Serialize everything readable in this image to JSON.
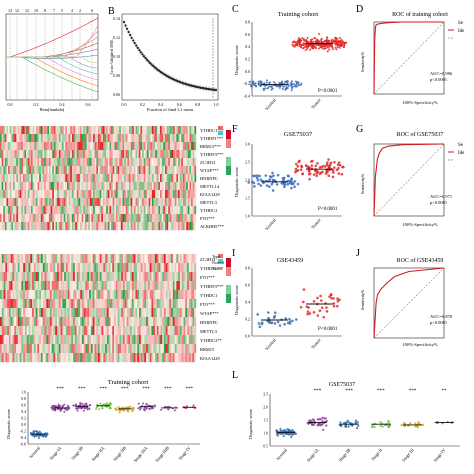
{
  "panels": {
    "A": {
      "letter": "",
      "ticks_top": [
        "12",
        "12",
        "12",
        "10",
        "8",
        "7",
        "5",
        "4",
        "2",
        "0"
      ],
      "xlabel": "Beta(lambda)",
      "xticks": [
        "0.0",
        "0.2",
        "0.4",
        "0.6"
      ]
    },
    "B": {
      "letter": "B",
      "ylabel": "Cross-Validated MSE",
      "xlabel": "Fraction of final L1 norm",
      "yticks": [
        "0.06",
        "0.08",
        "0.10",
        "0.12",
        "0.14"
      ],
      "xticks": [
        "0.0",
        "0.2",
        "0.4",
        "0.6",
        "0.8",
        "1.0"
      ]
    },
    "C": {
      "letter": "C",
      "title": "Training cohort",
      "ylabel": "Diagnostic score",
      "p_text": "P<0.0001",
      "yticks": [
        "0.8",
        "0.6",
        "0.4",
        "0.2",
        "0.0",
        "-0.2",
        "-0.4"
      ]
    },
    "D": {
      "letter": "D",
      "title": "ROC of training cohort",
      "legend": [
        "Se",
        "Ide"
      ],
      "auc": "AUC=0.986",
      "p": "p<0.0001",
      "xlabel": "100%-Specificity%",
      "ylabel": "Sensitivity%"
    },
    "E_labels": [
      "YTHDC1***",
      "YTHDF1***",
      "RBM15***",
      "YTHDF3***",
      "ZC3H13",
      "WTAP***",
      "HNRNPC",
      "METTL14",
      "KIAA1429",
      "METTL3",
      "YTHDC2",
      "FTO***",
      "ALKBH5***"
    ],
    "F": {
      "letter": "F",
      "title": "GSE75037",
      "ylabel": "Diagnostic score",
      "p_text": "P<0.0001",
      "yticks": [
        "3.0",
        "2.5",
        "2.0",
        "1.5",
        "1.0"
      ]
    },
    "G": {
      "letter": "G",
      "title": "ROC of GSE75037",
      "legend": [
        "Se",
        "Ide"
      ],
      "auc": "AUC=0.971",
      "p": "p<0.0001",
      "xlabel": "100%-Specificity%",
      "ylabel": "Sensitivity%"
    },
    "H_labels": [
      "ZC3H13",
      "YTHDF1***",
      "FTO***",
      "YTHDF3***",
      "YTHDC1",
      "FTO***",
      "WTAP***",
      "HNRNPC",
      "METTL3",
      "YTHDC2**",
      "RBM15",
      "KIAA1429"
    ],
    "H_legend": [
      "Type",
      "Normal",
      "Tumor"
    ],
    "I": {
      "letter": "I",
      "title": "GSE43459",
      "ylabel": "Diagnostic score",
      "p_text": "P<0.0001",
      "yticks": [
        "0.8",
        "0.6",
        "0.4",
        "0.2",
        "0.0"
      ]
    },
    "J": {
      "letter": "J",
      "title": "ROC of GSE43459",
      "auc": "AUC=0.878",
      "p": "p<0.0001",
      "xlabel": "100%-Specificity%",
      "ylabel": "Sensitivity%"
    },
    "K": {
      "letter": "",
      "title": "Training cohort",
      "ylabel": "Diagnostic score",
      "yticks": [
        "1.0",
        "0.8",
        "0.6",
        "0.4",
        "0.2",
        "0.0",
        "-0.2",
        "-0.4",
        "-0.6"
      ]
    },
    "L": {
      "letter": "L",
      "title": "GSE75037",
      "ylabel": "Diagnostic score",
      "yticks": [
        "2.5",
        "2.0",
        "1.5",
        "1.0",
        "0.5"
      ]
    }
  },
  "colors": {
    "blue": "#3b6fb6",
    "red": "#e02a2a",
    "heat_red": "#c8102e",
    "heat_green": "#2ca25f",
    "stage_green": "#6cc04a",
    "stage_purple": "#8b3a9c",
    "stage_blue": "#2f6db5",
    "stage_gold": "#d4a017"
  },
  "chart_data": [
    {
      "panel": "C",
      "type": "scatter",
      "categories": [
        "Normal",
        "Tumor"
      ],
      "medians": [
        -0.3,
        0.42
      ],
      "ylim": [
        -0.5,
        0.8
      ]
    },
    {
      "panel": "D",
      "type": "line",
      "series": [
        {
          "name": "Se",
          "x": [
            0,
            1,
            2,
            3,
            5,
            10,
            20,
            40,
            100
          ],
          "y": [
            0,
            75,
            92,
            96,
            97,
            98,
            99,
            100,
            100
          ]
        }
      ],
      "xlim": [
        0,
        100
      ],
      "ylim": [
        0,
        100
      ]
    },
    {
      "panel": "F",
      "type": "scatter",
      "categories": [
        "Normal",
        "Tumor"
      ],
      "medians": [
        1.95,
        2.3
      ],
      "ylim": [
        1.0,
        3.0
      ]
    },
    {
      "panel": "G",
      "type": "line",
      "series": [
        {
          "name": "Se",
          "x": [
            0,
            2,
            5,
            8,
            12,
            20,
            40,
            100
          ],
          "y": [
            0,
            55,
            80,
            88,
            94,
            97,
            99,
            100
          ]
        }
      ],
      "xlim": [
        0,
        100
      ],
      "ylim": [
        0,
        100
      ]
    },
    {
      "panel": "I",
      "type": "scatter",
      "categories": [
        "Normal",
        "Tumor"
      ],
      "medians": [
        0.2,
        0.4
      ],
      "ylim": [
        0.0,
        0.85
      ]
    },
    {
      "panel": "J",
      "type": "line",
      "series": [
        {
          "name": "Se",
          "x": [
            0,
            3,
            5,
            10,
            15,
            20,
            30,
            50,
            100
          ],
          "y": [
            0,
            50,
            62,
            70,
            75,
            80,
            88,
            95,
            100
          ]
        }
      ],
      "xlim": [
        0,
        100
      ],
      "ylim": [
        0,
        100
      ]
    },
    {
      "panel": "K",
      "type": "scatter",
      "categories": [
        "Normal",
        "Stage IA",
        "Stage IB",
        "Stage IIA",
        "Stage IIB",
        "Stage IIIA",
        "Stage IIIB",
        "Stage IV"
      ],
      "medians": [
        -0.38,
        0.48,
        0.52,
        0.55,
        0.45,
        0.52,
        0.48,
        0.5
      ],
      "significance": [
        "",
        "***",
        "***",
        "***",
        "***",
        "***",
        "***",
        "***"
      ],
      "ylim": [
        -0.7,
        1.0
      ]
    },
    {
      "panel": "L",
      "type": "scatter",
      "categories": [
        "Normal",
        "Stage IA",
        "Stage IB",
        "Stage II",
        "Stage III",
        "Stage IV"
      ],
      "medians": [
        1.05,
        1.45,
        1.38,
        1.38,
        1.35,
        1.45
      ],
      "significance": [
        "",
        "***",
        "***",
        "***",
        "***",
        "**"
      ],
      "ylim": [
        0.5,
        2.6
      ]
    }
  ]
}
